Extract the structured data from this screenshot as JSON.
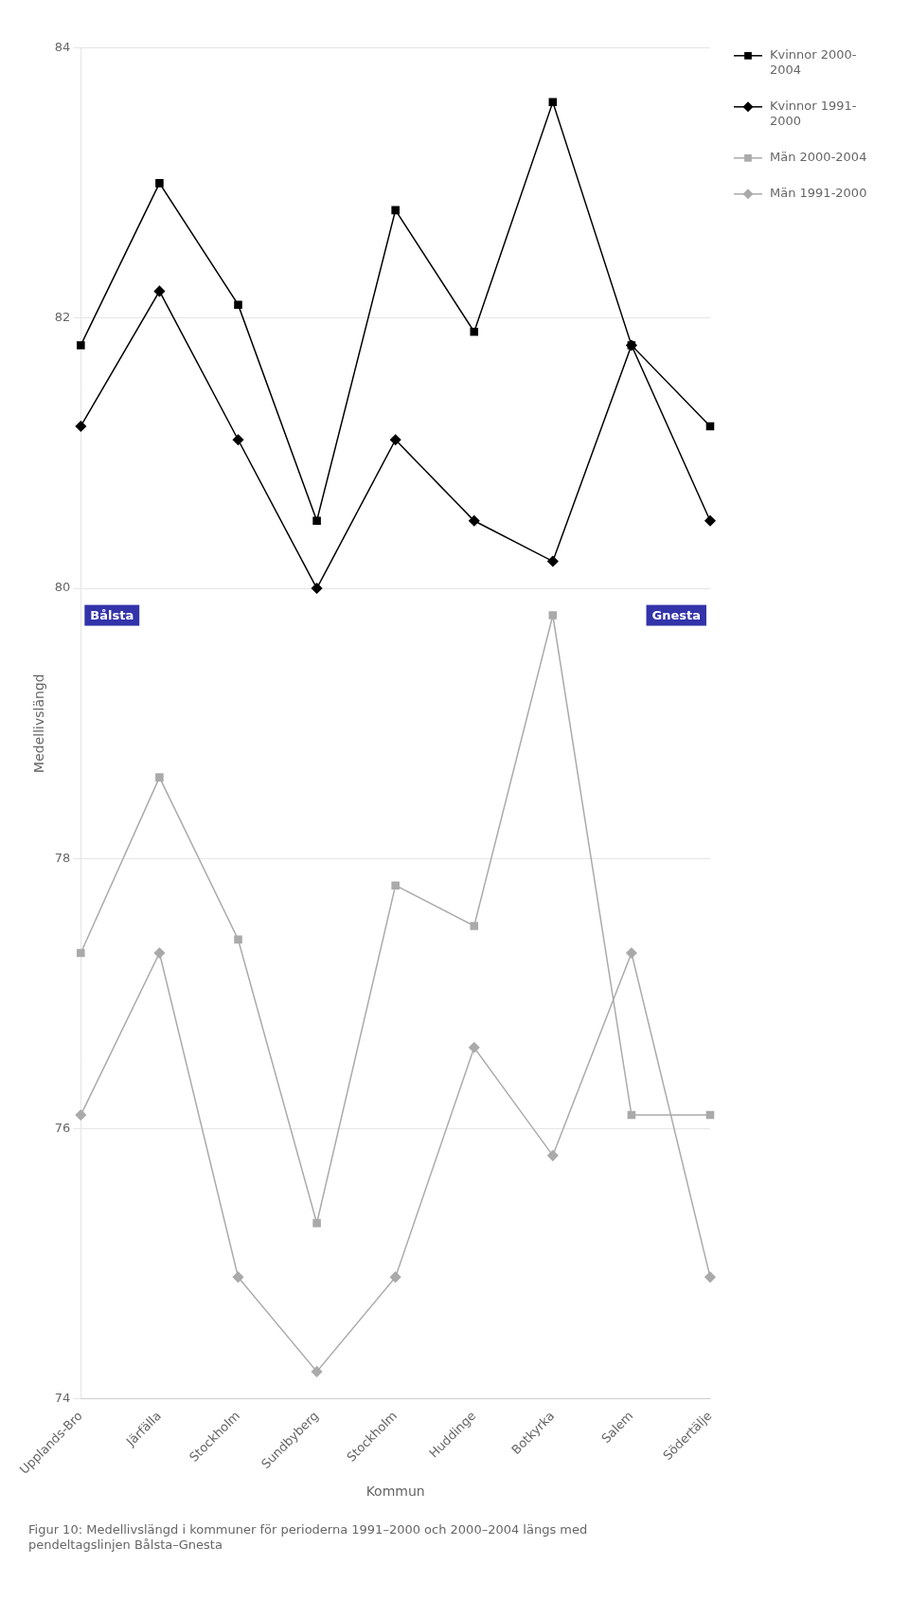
{
  "chart_data": {
    "type": "line",
    "subtitle": "Figur 10: Medellivslängd i kommuner för perioderna 1991–2000 och 2000–2004 längs med\npendeltagslinjen Bålsta–Gnesta",
    "x_label": "Kommun",
    "y_label": "Medellivslängd",
    "categories": [
      "Upplands-Bro",
      "Järfälla",
      "Stockholm",
      "Sundbyberg",
      "Stockholm",
      "Huddinge",
      "Botkyrka",
      "Salem",
      "Södertälje"
    ],
    "series": [
      {
        "name": "Kvinnor 2000-\n2004",
        "color": "#000000",
        "marker": "square",
        "values": [
          81.8,
          83.0,
          82.1,
          80.5,
          82.8,
          81.9,
          83.6,
          81.8,
          81.2
        ]
      },
      {
        "name": "Kvinnor 1991-\n2000",
        "color": "#000000",
        "marker": "diamond",
        "values": [
          81.2,
          82.2,
          81.1,
          80.0,
          81.1,
          80.5,
          80.2,
          81.8,
          80.5
        ]
      },
      {
        "name": "Män 2000-2004",
        "color": "#aaaaaa",
        "marker": "square",
        "values": [
          77.3,
          78.6,
          77.4,
          75.3,
          77.8,
          77.5,
          79.8,
          76.1,
          76.1
        ]
      },
      {
        "name": "Män 1991-2000",
        "color": "#aaaaaa",
        "marker": "diamond",
        "values": [
          76.1,
          77.3,
          74.9,
          74.2,
          74.9,
          76.6,
          75.8,
          77.3,
          74.9
        ]
      }
    ],
    "ylim": [
      74,
      84
    ],
    "yticks": [
      74,
      76,
      78,
      80,
      82,
      84
    ],
    "grid": true,
    "legend": "right",
    "annotations": [
      {
        "text": "Bålsta",
        "x": 0,
        "y": 79.8,
        "color": "#3333aa"
      },
      {
        "text": "Gnesta",
        "x": 8,
        "y": 79.8,
        "color": "#3333aa"
      }
    ]
  }
}
